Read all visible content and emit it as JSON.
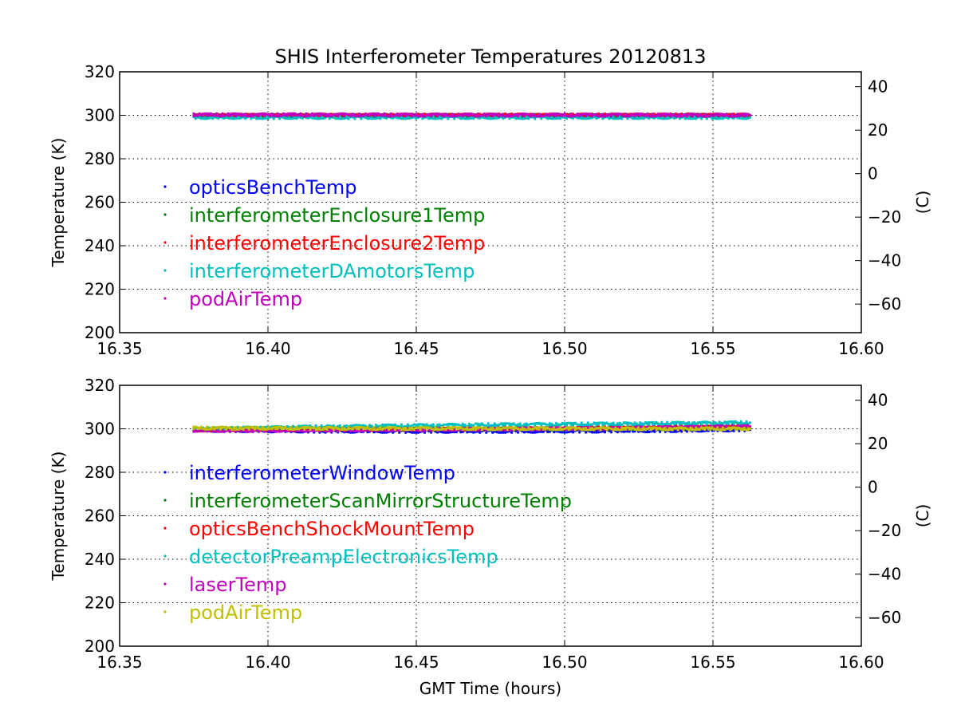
{
  "title": "SHIS Interferometer Temperatures 20120813",
  "xlabel": "GMT Time (hours)",
  "chart_data": [
    {
      "type": "scatter",
      "title": "SHIS Interferometer Temperatures 20120813",
      "xlabel": "",
      "ylabel": "Temperature (K)",
      "ylabel_right": "(C)",
      "xlim": [
        16.35,
        16.6
      ],
      "ylim": [
        200,
        320
      ],
      "xticks": [
        "16.35",
        "16.40",
        "16.45",
        "16.50",
        "16.55",
        "16.60"
      ],
      "yticks": [
        "200",
        "220",
        "240",
        "260",
        "280",
        "300",
        "320"
      ],
      "yticks_right": [
        "40",
        "20",
        "0",
        "−20",
        "−40",
        "−60"
      ],
      "yticks_right_values": [
        40,
        20,
        0,
        -20,
        -40,
        -60
      ],
      "grid": true,
      "legend_loc": "center-left",
      "series": [
        {
          "name": "opticsBenchTemp",
          "color": "#0000ff",
          "x": [
            16.375,
            16.42,
            16.47,
            16.52,
            16.5625
          ],
          "y": [
            299.8,
            299.8,
            299.8,
            299.8,
            299.8
          ]
        },
        {
          "name": "interferometerEnclosure1Temp",
          "color": "#008000",
          "x": [
            16.375,
            16.42,
            16.47,
            16.52,
            16.5625
          ],
          "y": [
            299.9,
            299.9,
            299.9,
            299.9,
            299.9
          ]
        },
        {
          "name": "interferometerEnclosure2Temp",
          "color": "#ff0000",
          "x": [
            16.375,
            16.42,
            16.47,
            16.52,
            16.5625
          ],
          "y": [
            300.0,
            300.0,
            300.1,
            300.1,
            300.1
          ]
        },
        {
          "name": "interferometerDAmotorsTemp",
          "color": "#00bfbf",
          "x": [
            16.375,
            16.42,
            16.47,
            16.52,
            16.5625
          ],
          "y": [
            299.0,
            299.0,
            299.0,
            299.0,
            299.0
          ]
        },
        {
          "name": "podAirTemp",
          "color": "#bf00bf",
          "x": [
            16.375,
            16.42,
            16.47,
            16.52,
            16.5625
          ],
          "y": [
            300.2,
            300.2,
            300.1,
            300.1,
            300.0
          ]
        }
      ]
    },
    {
      "type": "scatter",
      "title": "",
      "xlabel": "GMT Time (hours)",
      "ylabel": "Temperature (K)",
      "ylabel_right": "(C)",
      "xlim": [
        16.35,
        16.6
      ],
      "ylim": [
        200,
        320
      ],
      "xticks": [
        "16.35",
        "16.40",
        "16.45",
        "16.50",
        "16.55",
        "16.60"
      ],
      "yticks": [
        "200",
        "220",
        "240",
        "260",
        "280",
        "300",
        "320"
      ],
      "yticks_right": [
        "40",
        "20",
        "0",
        "−20",
        "−40",
        "−60"
      ],
      "yticks_right_values": [
        40,
        20,
        0,
        -20,
        -40,
        -60
      ],
      "grid": true,
      "legend_loc": "center-left",
      "series": [
        {
          "name": "interferometerWindowTemp",
          "color": "#0000ff",
          "x": [
            16.375,
            16.42,
            16.47,
            16.52,
            16.5625
          ],
          "y": [
            299.3,
            298.9,
            298.8,
            299.0,
            299.6
          ]
        },
        {
          "name": "interferometerScanMirrorStructureTemp",
          "color": "#008000",
          "x": [
            16.375,
            16.42,
            16.47,
            16.52,
            16.5625
          ],
          "y": [
            299.6,
            299.8,
            299.9,
            300.1,
            300.4
          ]
        },
        {
          "name": "opticsBenchShockMountTemp",
          "color": "#ff0000",
          "x": [
            16.375,
            16.42,
            16.47,
            16.52,
            16.5625
          ],
          "y": [
            299.5,
            299.7,
            300.0,
            300.5,
            301.1
          ]
        },
        {
          "name": "detectorPreampElectronicsTemp",
          "color": "#00bfbf",
          "x": [
            16.375,
            16.42,
            16.47,
            16.52,
            16.5625
          ],
          "y": [
            299.9,
            301.0,
            301.8,
            302.3,
            302.8
          ]
        },
        {
          "name": "laserTemp",
          "color": "#bf00bf",
          "x": [
            16.375,
            16.42,
            16.47,
            16.52,
            16.5625
          ],
          "y": [
            299.2,
            299.4,
            299.8,
            300.3,
            301.0
          ]
        },
        {
          "name": "podAirTemp",
          "color": "#bfbf00",
          "x": [
            16.375,
            16.42,
            16.47,
            16.52,
            16.5625
          ],
          "y": [
            300.3,
            300.2,
            300.1,
            300.0,
            300.0
          ]
        }
      ]
    }
  ]
}
